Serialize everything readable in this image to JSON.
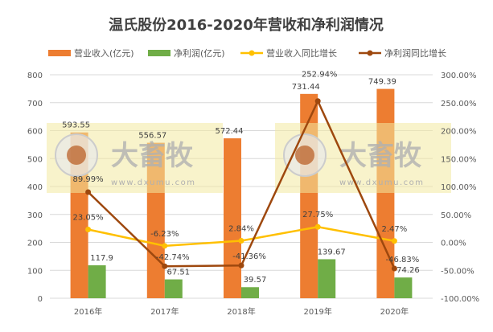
{
  "chart_data": {
    "type": "bar+line",
    "title": "温氏股份2016-2020年营收和净利润情况",
    "categories": [
      "2016年",
      "2017年",
      "2018年",
      "2019年",
      "2020年"
    ],
    "left_axis": {
      "ylim": [
        0,
        800
      ],
      "ticks": [
        "0",
        "100",
        "200",
        "300",
        "400",
        "500",
        "600",
        "700",
        "800"
      ]
    },
    "right_axis": {
      "ylim": [
        -100,
        300
      ],
      "ticks": [
        "-100.00%",
        "-50.00%",
        "0.00%",
        "50.00%",
        "100.00%",
        "150.00%",
        "200.00%",
        "250.00%",
        "300.00%"
      ]
    },
    "grid": true,
    "legend_position": "top",
    "series": [
      {
        "name": "营业收入(亿元)",
        "type": "bar",
        "axis": "left",
        "color": "#ED7D31",
        "values": [
          593.55,
          556.57,
          572.44,
          731.44,
          749.39
        ],
        "labels": [
          "593.55",
          "556.57",
          "572.44",
          "731.44",
          "749.39"
        ]
      },
      {
        "name": "净利润(亿元)",
        "type": "bar",
        "axis": "left",
        "color": "#70AD47",
        "values": [
          117.9,
          67.51,
          39.57,
          139.67,
          74.26
        ],
        "labels": [
          "117.9",
          "67.51",
          "39.57",
          "139.67",
          "74.26"
        ]
      },
      {
        "name": "营业收入同比增长",
        "type": "line",
        "axis": "right",
        "color": "#FFC000",
        "values": [
          23.05,
          -6.23,
          2.84,
          27.75,
          2.47
        ],
        "labels": [
          "23.05%",
          "-6.23%",
          "2.84%",
          "27.75%",
          "2.47%"
        ]
      },
      {
        "name": "净利润同比增长",
        "type": "line",
        "axis": "right",
        "color": "#9E480E",
        "values": [
          89.99,
          -42.74,
          -41.36,
          252.94,
          -46.83
        ],
        "labels": [
          "89.99%",
          "-42.74%",
          "-41.36%",
          "252.94%",
          "-46.83%"
        ]
      }
    ]
  },
  "watermark": {
    "brand": "大畜牧",
    "url": "www.dxumu.com"
  }
}
